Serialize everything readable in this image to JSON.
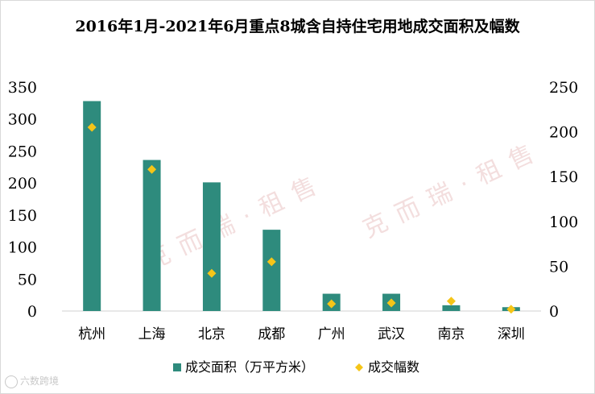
{
  "chart_data": {
    "type": "bar+scatter",
    "title": "2016年1月-2021年6月重点8城含自持住宅用地成交面积及幅数",
    "categories": [
      "杭州",
      "上海",
      "北京",
      "成都",
      "广州",
      "武汉",
      "南京",
      "深圳"
    ],
    "series": [
      {
        "name": "成交面积（万平方米）",
        "type": "bar",
        "axis": "left",
        "color": "#2e8b7d",
        "values": [
          328,
          236,
          201,
          127,
          27,
          27,
          9,
          6
        ]
      },
      {
        "name": "成交幅数",
        "type": "scatter",
        "axis": "right",
        "color": "#f5c518",
        "values": [
          205,
          158,
          42,
          55,
          8,
          9,
          11,
          2
        ]
      }
    ],
    "y_left": {
      "min": 0,
      "max": 350,
      "ticks": [
        "0",
        "50",
        "100",
        "150",
        "200",
        "250",
        "300",
        "350"
      ]
    },
    "y_right": {
      "min": 0,
      "max": 250,
      "ticks": [
        "0",
        "50",
        "100",
        "150",
        "200",
        "250"
      ]
    },
    "legend_position": "bottom",
    "grid": false
  },
  "watermarks": {
    "main": "克而瑞·租售",
    "footer": "六数跨境"
  }
}
